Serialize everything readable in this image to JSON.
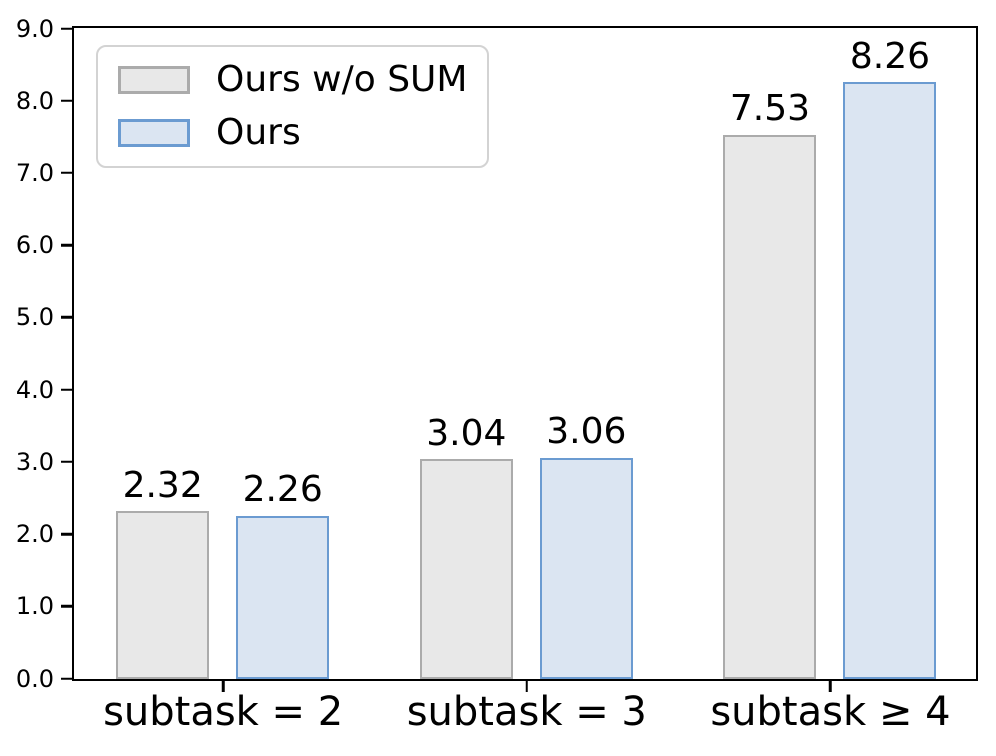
{
  "chart_data": {
    "type": "bar",
    "title": "",
    "categories": [
      "subtask = 2",
      "subtask = 3",
      "subtask ≥ 4"
    ],
    "series": [
      {
        "name": "Ours w/o SUM",
        "values": [
          2.32,
          3.04,
          7.53
        ],
        "fill_color": "#e8e8e8",
        "edge_color": "#ababab"
      },
      {
        "name": "Ours",
        "values": [
          2.26,
          3.06,
          8.26
        ],
        "fill_color": "#dbe5f2",
        "edge_color": "#6b9bd1"
      }
    ],
    "value_labels": [
      [
        "2.32",
        "3.04",
        "7.53"
      ],
      [
        "2.26",
        "3.06",
        "8.26"
      ]
    ],
    "xlabel": "",
    "ylabel": "",
    "ylim": [
      0,
      9
    ],
    "yticks": [
      0,
      1,
      2,
      3,
      4,
      5,
      6,
      7,
      8,
      9
    ],
    "ytick_labels": [
      "0.0",
      "1.0",
      "2.0",
      "3.0",
      "4.0",
      "5.0",
      "6.0",
      "7.0",
      "8.0",
      "9.0"
    ],
    "grid": false,
    "legend_position": "upper-left",
    "bar_value_labels_shown": true
  },
  "colors": {
    "axis": "#000000",
    "text": "#000000",
    "legend_border": "#d3d3d3",
    "background": "#ffffff"
  }
}
